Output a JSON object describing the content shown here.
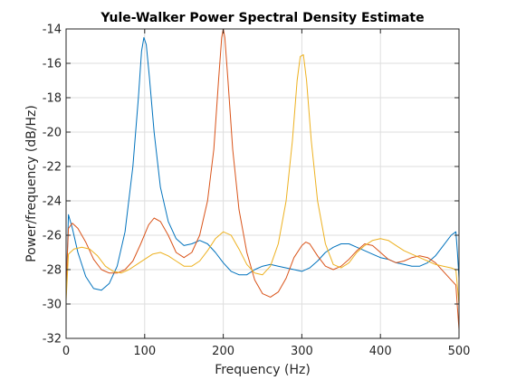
{
  "chart_data": {
    "type": "line",
    "title": "Yule-Walker Power Spectral Density Estimate",
    "xlabel": "Frequency (Hz)",
    "ylabel": "Power/frequency (dB/Hz)",
    "xlim": [
      0,
      500
    ],
    "ylim": [
      -32,
      -14
    ],
    "xticks": [
      0,
      100,
      200,
      300,
      400,
      500
    ],
    "yticks": [
      -32,
      -30,
      -28,
      -26,
      -24,
      -22,
      -20,
      -18,
      -16,
      -14
    ],
    "grid": true,
    "legend": "none",
    "series": [
      {
        "color": "#0072bd",
        "points": [
          [
            0,
            -29.5
          ],
          [
            3,
            -24.8
          ],
          [
            8,
            -25.6
          ],
          [
            15,
            -27.0
          ],
          [
            25,
            -28.4
          ],
          [
            35,
            -29.1
          ],
          [
            45,
            -29.2
          ],
          [
            55,
            -28.8
          ],
          [
            65,
            -27.8
          ],
          [
            75,
            -25.8
          ],
          [
            85,
            -22.0
          ],
          [
            92,
            -18.0
          ],
          [
            96,
            -15.3
          ],
          [
            99,
            -14.5
          ],
          [
            102,
            -14.9
          ],
          [
            106,
            -16.8
          ],
          [
            112,
            -20.0
          ],
          [
            120,
            -23.2
          ],
          [
            130,
            -25.2
          ],
          [
            140,
            -26.2
          ],
          [
            150,
            -26.6
          ],
          [
            160,
            -26.5
          ],
          [
            170,
            -26.3
          ],
          [
            180,
            -26.5
          ],
          [
            190,
            -27.0
          ],
          [
            200,
            -27.6
          ],
          [
            210,
            -28.1
          ],
          [
            220,
            -28.3
          ],
          [
            230,
            -28.3
          ],
          [
            240,
            -28.0
          ],
          [
            250,
            -27.8
          ],
          [
            260,
            -27.7
          ],
          [
            270,
            -27.8
          ],
          [
            280,
            -27.9
          ],
          [
            290,
            -28.0
          ],
          [
            300,
            -28.1
          ],
          [
            310,
            -27.9
          ],
          [
            320,
            -27.5
          ],
          [
            330,
            -27.0
          ],
          [
            340,
            -26.7
          ],
          [
            350,
            -26.5
          ],
          [
            360,
            -26.5
          ],
          [
            370,
            -26.7
          ],
          [
            380,
            -26.9
          ],
          [
            390,
            -27.1
          ],
          [
            400,
            -27.3
          ],
          [
            410,
            -27.4
          ],
          [
            420,
            -27.6
          ],
          [
            430,
            -27.7
          ],
          [
            440,
            -27.8
          ],
          [
            450,
            -27.8
          ],
          [
            460,
            -27.6
          ],
          [
            470,
            -27.2
          ],
          [
            480,
            -26.6
          ],
          [
            490,
            -26.0
          ],
          [
            496,
            -25.8
          ],
          [
            498,
            -27.0
          ],
          [
            500,
            -28.5
          ]
        ]
      },
      {
        "color": "#d95319",
        "points": [
          [
            0,
            -29.0
          ],
          [
            3,
            -25.6
          ],
          [
            8,
            -25.3
          ],
          [
            15,
            -25.6
          ],
          [
            25,
            -26.4
          ],
          [
            35,
            -27.4
          ],
          [
            45,
            -28.0
          ],
          [
            55,
            -28.2
          ],
          [
            65,
            -28.2
          ],
          [
            75,
            -28.0
          ],
          [
            85,
            -27.5
          ],
          [
            95,
            -26.5
          ],
          [
            105,
            -25.4
          ],
          [
            112,
            -25.0
          ],
          [
            120,
            -25.2
          ],
          [
            130,
            -26.0
          ],
          [
            140,
            -27.0
          ],
          [
            150,
            -27.3
          ],
          [
            160,
            -27.0
          ],
          [
            170,
            -26.0
          ],
          [
            180,
            -24.0
          ],
          [
            188,
            -21.0
          ],
          [
            194,
            -17.0
          ],
          [
            198,
            -14.5
          ],
          [
            200,
            -14.0
          ],
          [
            202,
            -14.5
          ],
          [
            206,
            -17.0
          ],
          [
            212,
            -21.0
          ],
          [
            220,
            -24.5
          ],
          [
            230,
            -27.0
          ],
          [
            240,
            -28.6
          ],
          [
            250,
            -29.4
          ],
          [
            260,
            -29.6
          ],
          [
            270,
            -29.3
          ],
          [
            280,
            -28.5
          ],
          [
            290,
            -27.3
          ],
          [
            300,
            -26.6
          ],
          [
            305,
            -26.4
          ],
          [
            310,
            -26.5
          ],
          [
            320,
            -27.2
          ],
          [
            330,
            -27.8
          ],
          [
            340,
            -28.0
          ],
          [
            350,
            -27.8
          ],
          [
            360,
            -27.4
          ],
          [
            370,
            -26.9
          ],
          [
            380,
            -26.5
          ],
          [
            390,
            -26.6
          ],
          [
            400,
            -27.0
          ],
          [
            410,
            -27.4
          ],
          [
            420,
            -27.6
          ],
          [
            430,
            -27.5
          ],
          [
            440,
            -27.3
          ],
          [
            450,
            -27.2
          ],
          [
            460,
            -27.3
          ],
          [
            470,
            -27.6
          ],
          [
            480,
            -28.1
          ],
          [
            490,
            -28.6
          ],
          [
            496,
            -28.9
          ],
          [
            500,
            -31.5
          ]
        ]
      },
      {
        "color": "#edb120",
        "points": [
          [
            0,
            -29.8
          ],
          [
            3,
            -27.1
          ],
          [
            10,
            -26.8
          ],
          [
            20,
            -26.7
          ],
          [
            30,
            -26.8
          ],
          [
            40,
            -27.2
          ],
          [
            50,
            -27.8
          ],
          [
            60,
            -28.1
          ],
          [
            70,
            -28.2
          ],
          [
            80,
            -28.0
          ],
          [
            90,
            -27.7
          ],
          [
            100,
            -27.4
          ],
          [
            110,
            -27.1
          ],
          [
            120,
            -27.0
          ],
          [
            130,
            -27.2
          ],
          [
            140,
            -27.5
          ],
          [
            150,
            -27.8
          ],
          [
            160,
            -27.8
          ],
          [
            170,
            -27.5
          ],
          [
            180,
            -26.9
          ],
          [
            190,
            -26.2
          ],
          [
            200,
            -25.8
          ],
          [
            210,
            -26.0
          ],
          [
            220,
            -26.8
          ],
          [
            230,
            -27.7
          ],
          [
            240,
            -28.2
          ],
          [
            250,
            -28.3
          ],
          [
            260,
            -27.8
          ],
          [
            270,
            -26.5
          ],
          [
            280,
            -24.0
          ],
          [
            288,
            -20.5
          ],
          [
            294,
            -17.0
          ],
          [
            298,
            -15.6
          ],
          [
            302,
            -15.5
          ],
          [
            306,
            -17.0
          ],
          [
            312,
            -20.5
          ],
          [
            320,
            -24.0
          ],
          [
            330,
            -26.5
          ],
          [
            340,
            -27.7
          ],
          [
            350,
            -27.9
          ],
          [
            360,
            -27.6
          ],
          [
            370,
            -27.0
          ],
          [
            380,
            -26.6
          ],
          [
            390,
            -26.3
          ],
          [
            400,
            -26.2
          ],
          [
            410,
            -26.3
          ],
          [
            420,
            -26.6
          ],
          [
            430,
            -26.9
          ],
          [
            440,
            -27.1
          ],
          [
            450,
            -27.3
          ],
          [
            460,
            -27.5
          ],
          [
            470,
            -27.7
          ],
          [
            480,
            -27.8
          ],
          [
            490,
            -27.9
          ],
          [
            496,
            -28.0
          ],
          [
            500,
            -30.0
          ]
        ]
      }
    ]
  }
}
